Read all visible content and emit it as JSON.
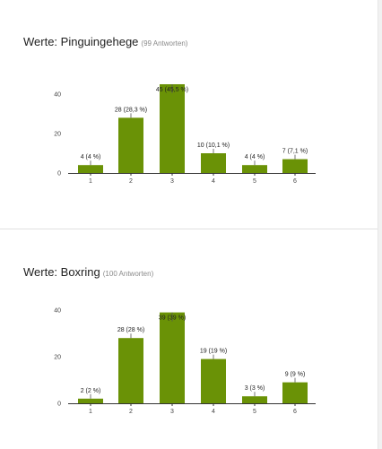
{
  "chart_data": [
    {
      "type": "bar",
      "title": "Werte: Pinguingehege",
      "subtitle": "(99 Antworten)",
      "categories": [
        "1",
        "2",
        "3",
        "4",
        "5",
        "6"
      ],
      "values": [
        4,
        28,
        45,
        10,
        4,
        7
      ],
      "data_labels": [
        "4 (4 %)",
        "28 (28,3 %)",
        "45 (45,5 %)",
        "10 (10,1 %)",
        "4 (4 %)",
        "7 (7,1 %)"
      ],
      "yticks": [
        "0",
        "20",
        "40"
      ],
      "ylim": [
        0,
        48
      ],
      "grid": false,
      "color": "#6a9206"
    },
    {
      "type": "bar",
      "title": "Werte: Boxring",
      "subtitle": "(100 Antworten)",
      "categories": [
        "1",
        "2",
        "3",
        "4",
        "5",
        "6"
      ],
      "values": [
        2,
        28,
        39,
        19,
        3,
        9
      ],
      "data_labels": [
        "2 (2 %)",
        "28 (28 %)",
        "39 (39 %)",
        "19 (19 %)",
        "3 (3 %)",
        "9 (9 %)"
      ],
      "yticks": [
        "0",
        "20",
        "40"
      ],
      "ylim": [
        0,
        42
      ],
      "grid": false,
      "color": "#6a9206"
    }
  ]
}
